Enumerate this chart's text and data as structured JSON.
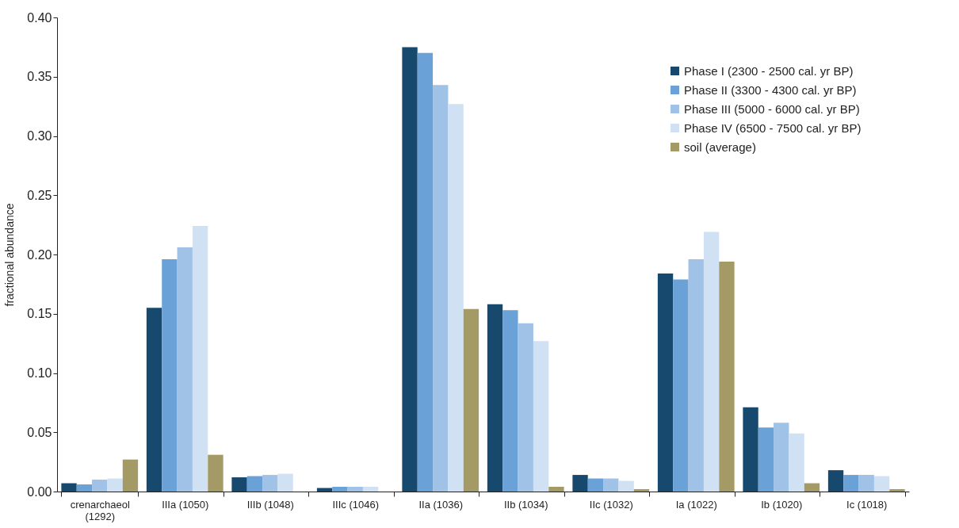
{
  "chart_data": {
    "type": "bar",
    "ylabel": "fractional abundance",
    "categories": [
      "crenarchaeol (1292)",
      "IIIa (1050)",
      "IIIb (1048)",
      "IIIc (1046)",
      "IIa (1036)",
      "IIb (1034)",
      "IIc (1032)",
      "Ia (1022)",
      "Ib (1020)",
      "Ic (1018)"
    ],
    "series": [
      {
        "name": "Phase I (2300 - 2500 cal. yr BP)",
        "color": "#17496f",
        "values": [
          0.007,
          0.155,
          0.012,
          0.003,
          0.375,
          0.158,
          0.014,
          0.184,
          0.071,
          0.018
        ]
      },
      {
        "name": "Phase II (3300 - 4300 cal. yr BP)",
        "color": "#6aa1d6",
        "values": [
          0.006,
          0.196,
          0.013,
          0.004,
          0.37,
          0.153,
          0.011,
          0.179,
          0.054,
          0.014
        ]
      },
      {
        "name": "Phase III (5000 - 6000 cal. yr BP)",
        "color": "#9fc2e6",
        "values": [
          0.01,
          0.206,
          0.014,
          0.004,
          0.343,
          0.142,
          0.011,
          0.196,
          0.058,
          0.014
        ]
      },
      {
        "name": "Phase IV (6500 - 7500 cal. yr BP)",
        "color": "#cfe1f3",
        "values": [
          0.011,
          0.224,
          0.015,
          0.004,
          0.327,
          0.127,
          0.009,
          0.219,
          0.049,
          0.013
        ]
      },
      {
        "name": "soil (average)",
        "color": "#a49a66",
        "values": [
          0.027,
          0.031,
          null,
          null,
          0.154,
          0.004,
          0.002,
          0.194,
          0.007,
          0.002
        ]
      }
    ],
    "ylim": [
      0,
      0.4
    ],
    "yticks": [
      {
        "value": 0,
        "label": "0.00"
      },
      {
        "value": 0.05,
        "label": "0.05"
      },
      {
        "value": 0.1,
        "label": "0.10"
      },
      {
        "value": 0.15,
        "label": "0.15"
      },
      {
        "value": 0.2,
        "label": "0.20"
      },
      {
        "value": 0.25,
        "label": "0.25"
      },
      {
        "value": 0.3,
        "label": "0.30"
      },
      {
        "value": 0.35,
        "label": "0.35"
      },
      {
        "value": 0.4,
        "label": "0.40"
      }
    ],
    "grid": false,
    "legend": "top right"
  }
}
